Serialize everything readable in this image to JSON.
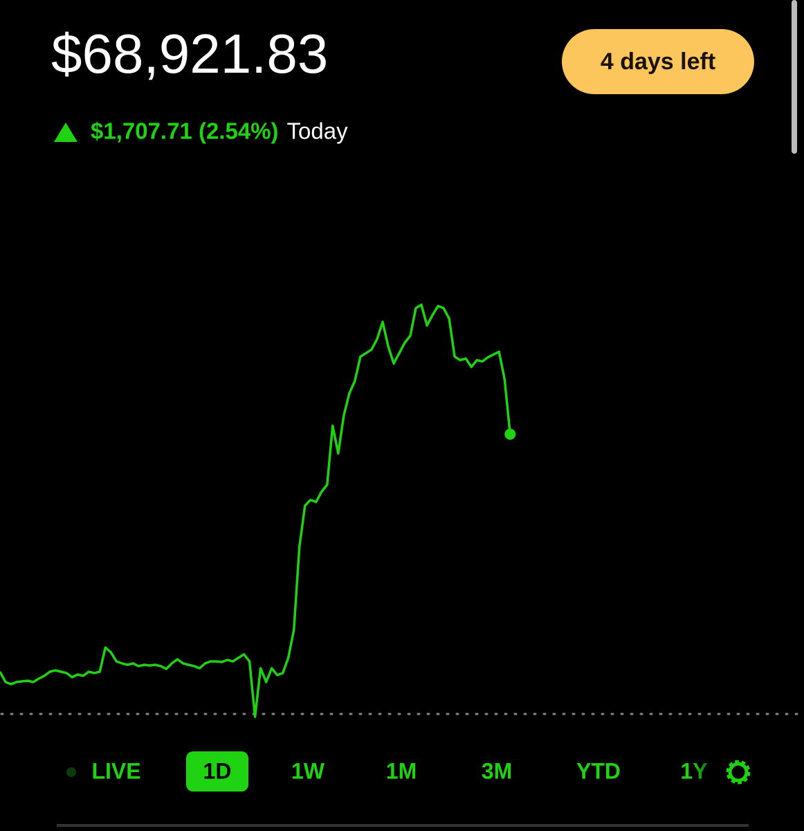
{
  "header": {
    "price": "$68,921.83",
    "change": "$1,707.71 (2.54%)",
    "period": "Today",
    "badge": "4 days left"
  },
  "chart_data": {
    "type": "line",
    "series": [
      {
        "color": "#1fd312",
        "values": [
          67472,
          67409,
          67396,
          67409,
          67413,
          67417,
          67409,
          67430,
          67447,
          67472,
          67480,
          67472,
          67464,
          67438,
          67455,
          67447,
          67472,
          67464,
          67472,
          67620,
          67590,
          67535,
          67523,
          67514,
          67523,
          67506,
          67514,
          67510,
          67514,
          67506,
          67489,
          67523,
          67548,
          67523,
          67514,
          67506,
          67493,
          67523,
          67535,
          67535,
          67531,
          67544,
          67535,
          67557,
          67578,
          67535,
          67197,
          67493,
          67409,
          67493,
          67451,
          67464,
          67557,
          67726,
          68233,
          68486,
          68520,
          68508,
          68571,
          68613,
          68973,
          68804,
          69036,
          69171,
          69247,
          69395,
          69416,
          69438,
          69501,
          69607,
          69459,
          69353,
          69416,
          69480,
          69522,
          69691,
          69712,
          69585,
          69649,
          69704,
          69691,
          69628,
          69395,
          69374,
          69383,
          69332,
          69374,
          69366,
          69391,
          69408,
          69425,
          69256,
          68921.83
        ]
      }
    ],
    "reference_value": 67214.12,
    "xlim": [
      0,
      145
    ],
    "ylim": [
      67091.5,
      70515
    ]
  },
  "range_tabs": [
    "LIVE",
    "1D",
    "1W",
    "1M",
    "3M",
    "YTD",
    "1Y"
  ],
  "selected_tab": 1
}
